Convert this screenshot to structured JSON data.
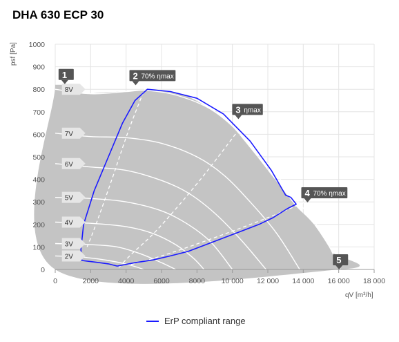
{
  "title": "DHA 630 ECP 30",
  "colors": {
    "area": "#c4c4c4",
    "erp": "#1a1aff",
    "callout": "#555555",
    "grid": "#e4e4e4"
  },
  "chart_data": {
    "type": "line",
    "xlabel": "qV [m³/h]",
    "ylabel": "psf [Pa]",
    "xlim": [
      0,
      18000
    ],
    "ylim": [
      0,
      1000
    ],
    "xticks": [
      0,
      2000,
      4000,
      6000,
      8000,
      10000,
      12000,
      14000,
      16000,
      18000
    ],
    "xtick_labels": [
      "0",
      "2000",
      "4000",
      "6000",
      "8000",
      "10 000",
      "12 000",
      "14 000",
      "16 000",
      "18 000"
    ],
    "yticks": [
      0,
      100,
      200,
      300,
      400,
      500,
      600,
      700,
      800,
      900,
      1000
    ],
    "ytick_labels": [
      "0",
      "100",
      "200",
      "300",
      "400",
      "500",
      "600",
      "700",
      "800",
      "900",
      "1000"
    ],
    "grid": true,
    "operating_area": [
      [
        0,
        820
      ],
      [
        0,
        0
      ],
      [
        16100,
        0
      ],
      [
        15600,
        80
      ],
      [
        14600,
        200
      ],
      [
        13600,
        280
      ],
      [
        13000,
        340
      ],
      [
        12200,
        420
      ],
      [
        11000,
        540
      ],
      [
        9800,
        650
      ],
      [
        8600,
        720
      ],
      [
        7400,
        770
      ],
      [
        6200,
        790
      ],
      [
        5000,
        795
      ],
      [
        3800,
        790
      ],
      [
        2600,
        785
      ],
      [
        1600,
        780
      ],
      [
        1000,
        790
      ],
      [
        800,
        820
      ]
    ],
    "voltage_curves": [
      {
        "label": "8V",
        "points": [
          [
            0,
            800
          ],
          [
            2000,
            780
          ],
          [
            4000,
            790
          ],
          [
            5200,
            795
          ],
          [
            7000,
            770
          ],
          [
            9000,
            700
          ],
          [
            11000,
            560
          ],
          [
            12500,
            420
          ],
          [
            13500,
            320
          ],
          [
            15000,
            170
          ],
          [
            16100,
            0
          ]
        ]
      },
      {
        "label": "7V",
        "points": [
          [
            0,
            605
          ],
          [
            2000,
            590
          ],
          [
            4000,
            585
          ],
          [
            6000,
            560
          ],
          [
            8000,
            500
          ],
          [
            9500,
            420
          ],
          [
            11000,
            300
          ],
          [
            12500,
            160
          ],
          [
            13800,
            0
          ]
        ]
      },
      {
        "label": "6V",
        "points": [
          [
            0,
            470
          ],
          [
            2000,
            455
          ],
          [
            4000,
            440
          ],
          [
            6000,
            395
          ],
          [
            7500,
            340
          ],
          [
            9000,
            250
          ],
          [
            10500,
            130
          ],
          [
            11900,
            0
          ]
        ]
      },
      {
        "label": "5V",
        "points": [
          [
            0,
            320
          ],
          [
            2000,
            315
          ],
          [
            4000,
            300
          ],
          [
            6000,
            260
          ],
          [
            7500,
            200
          ],
          [
            8800,
            120
          ],
          [
            10000,
            0
          ]
        ]
      },
      {
        "label": "4V",
        "points": [
          [
            0,
            210
          ],
          [
            2000,
            205
          ],
          [
            4000,
            190
          ],
          [
            5500,
            160
          ],
          [
            6800,
            110
          ],
          [
            7800,
            50
          ],
          [
            8400,
            0
          ]
        ]
      },
      {
        "label": "3V",
        "points": [
          [
            0,
            115
          ],
          [
            2000,
            110
          ],
          [
            3500,
            100
          ],
          [
            4800,
            70
          ],
          [
            6000,
            30
          ],
          [
            6800,
            0
          ]
        ]
      },
      {
        "label": "2V",
        "points": [
          [
            0,
            60
          ],
          [
            1500,
            55
          ],
          [
            3000,
            40
          ],
          [
            4200,
            20
          ],
          [
            5000,
            0
          ]
        ]
      }
    ],
    "efficiency_lines": [
      {
        "label": "70% ηmax",
        "points": [
          [
            5500,
            890
          ],
          [
            4200,
            630
          ],
          [
            3200,
            400
          ],
          [
            2300,
            200
          ],
          [
            1800,
            100
          ]
        ]
      },
      {
        "label": "ηmax",
        "points": [
          [
            10600,
            645
          ],
          [
            8200,
            400
          ],
          [
            5800,
            180
          ],
          [
            4200,
            60
          ],
          [
            3500,
            0
          ]
        ]
      },
      {
        "label": "70% ηmax",
        "points": [
          [
            15000,
            330
          ],
          [
            12000,
            230
          ],
          [
            8600,
            130
          ],
          [
            6000,
            60
          ],
          [
            4200,
            20
          ]
        ]
      }
    ],
    "series": [
      {
        "name": "ErP compliant range",
        "points": [
          [
            1450,
            90
          ],
          [
            1600,
            200
          ],
          [
            2200,
            350
          ],
          [
            3000,
            500
          ],
          [
            3800,
            650
          ],
          [
            4500,
            750
          ],
          [
            5200,
            800
          ],
          [
            6500,
            790
          ],
          [
            8000,
            760
          ],
          [
            9500,
            690
          ],
          [
            11000,
            570
          ],
          [
            12200,
            440
          ],
          [
            13000,
            330
          ],
          [
            13300,
            320
          ],
          [
            13600,
            290
          ],
          [
            13100,
            270
          ],
          [
            12300,
            230
          ],
          [
            11500,
            200
          ],
          [
            10500,
            170
          ],
          [
            9500,
            140
          ],
          [
            8500,
            110
          ],
          [
            7500,
            80
          ],
          [
            6500,
            60
          ],
          [
            5500,
            42
          ],
          [
            4500,
            30
          ],
          [
            3500,
            15
          ],
          [
            3000,
            25
          ],
          [
            2500,
            30
          ],
          [
            2000,
            35
          ],
          [
            1500,
            40
          ],
          [
            1450,
            90
          ]
        ]
      }
    ],
    "annotations": [
      {
        "id": "1",
        "text": "",
        "x": 500,
        "y": 835
      },
      {
        "id": "2",
        "text": "70% ηmax",
        "x": 4500,
        "y": 830
      },
      {
        "id": "3",
        "text": "ηmax",
        "x": 10300,
        "y": 680
      },
      {
        "id": "4",
        "text": "70% ηmax",
        "x": 14200,
        "y": 310
      },
      {
        "id": "5",
        "text": "",
        "x": 16100,
        "y": 0
      }
    ],
    "legend": [
      {
        "label": "ErP compliant range",
        "color": "#1a1aff"
      }
    ],
    "legend_position": "bottom"
  }
}
